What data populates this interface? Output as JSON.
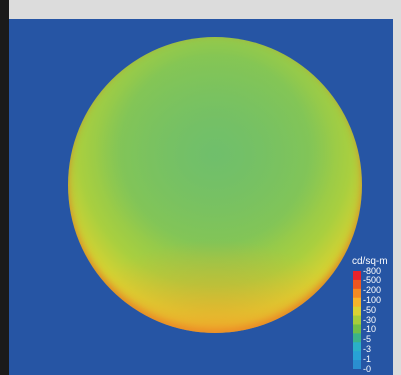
{
  "chart_data": {
    "type": "heatmap",
    "colorbar": {
      "unit": "cd/sq-m",
      "ticks": [
        "800",
        "500",
        "200",
        "100",
        "50",
        "30",
        "10",
        "5",
        "3",
        "1",
        "0"
      ],
      "colors": [
        "#e8222a",
        "#f0561f",
        "#f58a22",
        "#f7b42a",
        "#dbd233",
        "#a6cd3b",
        "#6fbf4a",
        "#3bb38a",
        "#2ab0c8",
        "#27a2d6",
        "#2a8fd0"
      ]
    },
    "background_color": "#2655a4"
  }
}
